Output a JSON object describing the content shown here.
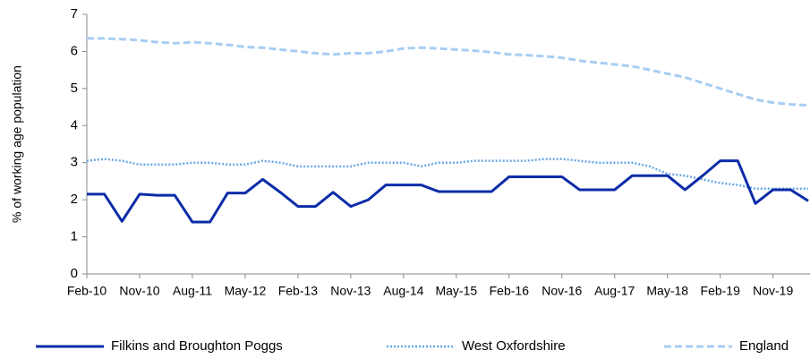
{
  "chart_data": {
    "type": "line",
    "y_label": "% of working age population",
    "categories": [
      "Feb-10",
      null,
      null,
      "Nov-10",
      null,
      null,
      "Aug-11",
      null,
      null,
      "May-12",
      null,
      null,
      "Feb-13",
      null,
      null,
      "Nov-13",
      null,
      null,
      "Aug-14",
      null,
      null,
      "May-15",
      null,
      null,
      "Feb-16",
      null,
      null,
      "Nov-16",
      null,
      null,
      "Aug-17",
      null,
      null,
      "May-18",
      null,
      null,
      "Feb-19",
      null,
      null,
      "Nov-19",
      null,
      null
    ],
    "series": [
      {
        "name": "Filkins and Broughton Poggs",
        "color": "#0c2ca8",
        "style": "solid",
        "values": [
          2.15,
          2.15,
          1.42,
          2.15,
          2.12,
          2.12,
          1.4,
          1.4,
          2.18,
          2.18,
          2.55,
          2.2,
          1.82,
          1.82,
          2.2,
          1.82,
          2.0,
          2.4,
          2.4,
          2.4,
          2.22,
          2.22,
          2.22,
          2.22,
          2.62,
          2.62,
          2.62,
          2.62,
          2.27,
          2.27,
          2.27,
          2.65,
          2.65,
          2.65,
          2.27,
          2.65,
          3.05,
          3.05,
          1.9,
          2.27,
          2.27,
          1.97
        ]
      },
      {
        "name": "West Oxfordshire",
        "color": "#6aa8e6",
        "style": "dotted",
        "values": [
          3.05,
          3.1,
          3.05,
          2.95,
          2.95,
          2.95,
          3.0,
          3.0,
          2.95,
          2.95,
          3.05,
          3.0,
          2.9,
          2.9,
          2.9,
          2.9,
          3.0,
          3.0,
          3.0,
          2.9,
          3.0,
          3.0,
          3.05,
          3.05,
          3.05,
          3.05,
          3.1,
          3.1,
          3.05,
          3.0,
          3.0,
          3.0,
          2.9,
          2.7,
          2.65,
          2.55,
          2.45,
          2.4,
          2.3,
          2.3,
          2.3,
          2.3
        ]
      },
      {
        "name": "England",
        "color": "#a8cdf3",
        "style": "dashed",
        "values": [
          6.35,
          6.35,
          6.33,
          6.3,
          6.25,
          6.22,
          6.25,
          6.22,
          6.18,
          6.12,
          6.1,
          6.05,
          6.0,
          5.95,
          5.92,
          5.95,
          5.95,
          6.0,
          6.08,
          6.1,
          6.08,
          6.05,
          6.02,
          5.98,
          5.92,
          5.9,
          5.87,
          5.83,
          5.75,
          5.7,
          5.65,
          5.6,
          5.5,
          5.4,
          5.3,
          5.15,
          5.0,
          4.85,
          4.7,
          4.62,
          4.57,
          4.55
        ]
      }
    ],
    "ylim": [
      0,
      7
    ],
    "yticks": [
      0,
      1,
      2,
      3,
      4,
      5,
      6,
      7
    ],
    "grid": false,
    "legend": "bottom"
  }
}
